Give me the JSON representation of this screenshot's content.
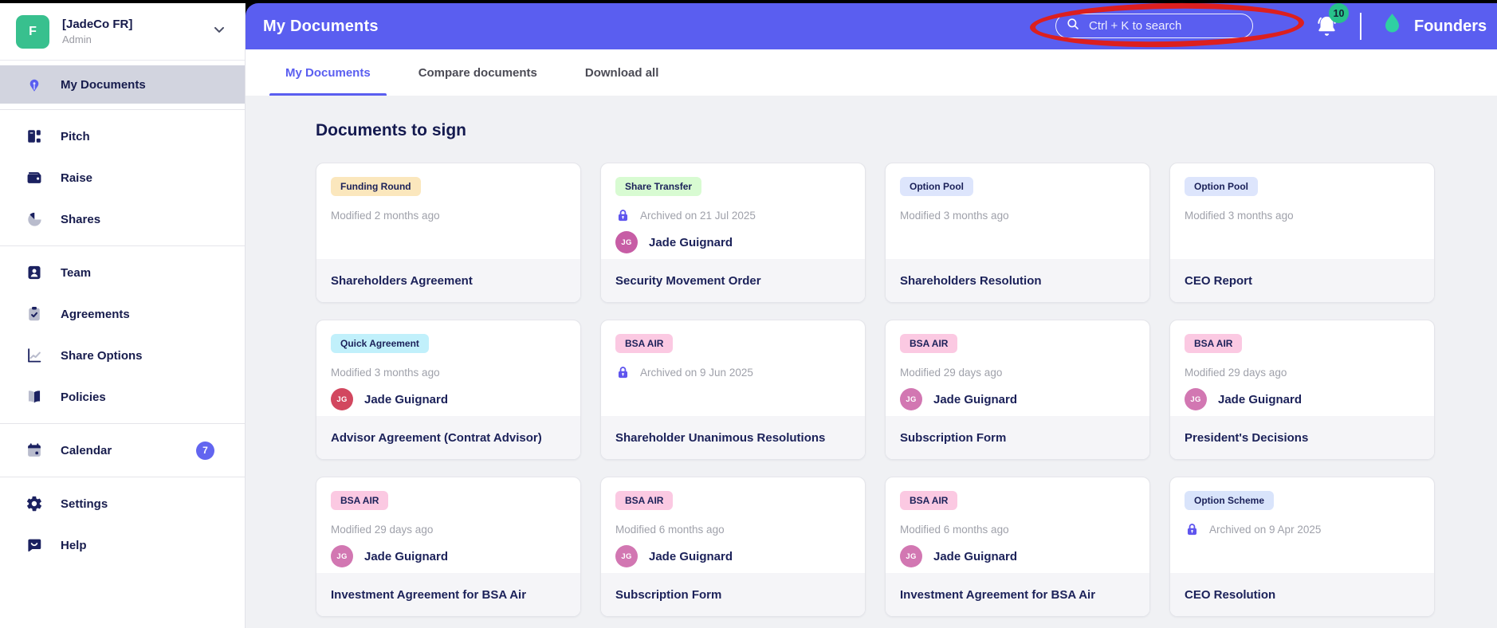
{
  "colors": {
    "accent": "#5a5ef0",
    "annotation_red": "#dc1f1f",
    "notification_badge_green": "#27c28b",
    "brand_teal": "#2fd0a2",
    "company_avatar_green": "#38c08e",
    "calendar_badge_purple": "#6265f0"
  },
  "sidebar": {
    "company": {
      "initial": "F",
      "name": "[JadeCo FR]",
      "role": "Admin"
    },
    "groups": [
      {
        "items": [
          {
            "label": "My Documents",
            "icon": "pen-nib",
            "active": true
          }
        ]
      },
      {
        "items": [
          {
            "label": "Pitch",
            "icon": "pitch-deck"
          },
          {
            "label": "Raise",
            "icon": "wallet"
          },
          {
            "label": "Shares",
            "icon": "pie-chart"
          }
        ]
      },
      {
        "items": [
          {
            "label": "Team",
            "icon": "person-badge"
          },
          {
            "label": "Agreements",
            "icon": "clipboard-check"
          },
          {
            "label": "Share Options",
            "icon": "line-chart"
          },
          {
            "label": "Policies",
            "icon": "book"
          }
        ]
      },
      {
        "items": [
          {
            "label": "Calendar",
            "icon": "calendar",
            "badge": "7"
          }
        ]
      },
      {
        "items": [
          {
            "label": "Settings",
            "icon": "gear"
          },
          {
            "label": "Help",
            "icon": "chat-bubble"
          }
        ]
      }
    ]
  },
  "header": {
    "title": "My Documents",
    "search_placeholder": "Ctrl + K to search",
    "notification_count": "10",
    "brand": "Founders"
  },
  "tabs": [
    {
      "label": "My Documents",
      "active": true
    },
    {
      "label": "Compare documents",
      "active": false
    },
    {
      "label": "Download all",
      "active": false
    }
  ],
  "content": {
    "section_title": "Documents to sign"
  },
  "cards": [
    {
      "tag": "Funding Round",
      "tag_color": "#fbe7bd",
      "meta": "Modified 2 months ago",
      "archived": false,
      "owner": null,
      "title": "Shareholders Agreement"
    },
    {
      "tag": "Share Transfer",
      "tag_color": "#d8fbd2",
      "meta": "Archived on 21 Jul 2025",
      "archived": true,
      "owner": {
        "initials": "JG",
        "name": "Jade Guignard",
        "color": "#c75da5"
      },
      "title": "Security Movement Order"
    },
    {
      "tag": "Option Pool",
      "tag_color": "#dde5fc",
      "meta": "Modified 3 months ago",
      "archived": false,
      "owner": null,
      "title": "Shareholders Resolution"
    },
    {
      "tag": "Option Pool",
      "tag_color": "#dde5fc",
      "meta": "Modified 3 months ago",
      "archived": false,
      "owner": null,
      "title": "CEO Report"
    },
    {
      "tag": "Quick Agreement",
      "tag_color": "#c1f0fb",
      "meta": "Modified 3 months ago",
      "archived": false,
      "owner": {
        "initials": "JG",
        "name": "Jade Guignard",
        "color": "#d2475f"
      },
      "title": "Advisor Agreement (Contrat Advisor)"
    },
    {
      "tag": "BSA AIR",
      "tag_color": "#fbc9e2",
      "meta": "Archived on 9 Jun 2025",
      "archived": true,
      "owner": null,
      "title": "Shareholder Unanimous Resolutions"
    },
    {
      "tag": "BSA AIR",
      "tag_color": "#fbc9e2",
      "meta": "Modified 29 days ago",
      "archived": false,
      "owner": {
        "initials": "JG",
        "name": "Jade Guignard",
        "color": "#d277b2"
      },
      "title": "Subscription Form"
    },
    {
      "tag": "BSA AIR",
      "tag_color": "#fbc9e2",
      "meta": "Modified 29 days ago",
      "archived": false,
      "owner": {
        "initials": "JG",
        "name": "Jade Guignard",
        "color": "#d277b2"
      },
      "title": "President's Decisions"
    },
    {
      "tag": "BSA AIR",
      "tag_color": "#fbc9e2",
      "meta": "Modified 29 days ago",
      "archived": false,
      "owner": {
        "initials": "JG",
        "name": "Jade Guignard",
        "color": "#d277b2"
      },
      "title": "Investment Agreement for BSA Air"
    },
    {
      "tag": "BSA AIR",
      "tag_color": "#fbc9e2",
      "meta": "Modified 6 months ago",
      "archived": false,
      "owner": {
        "initials": "JG",
        "name": "Jade Guignard",
        "color": "#d277b2"
      },
      "title": "Subscription Form"
    },
    {
      "tag": "BSA AIR",
      "tag_color": "#fbc9e2",
      "meta": "Modified 6 months ago",
      "archived": false,
      "owner": {
        "initials": "JG",
        "name": "Jade Guignard",
        "color": "#d277b2"
      },
      "title": "Investment Agreement for BSA Air"
    },
    {
      "tag": "Option Scheme",
      "tag_color": "#d9e4fb",
      "meta": "Archived on 9 Apr 2025",
      "archived": true,
      "owner": null,
      "title": "CEO Resolution"
    }
  ]
}
